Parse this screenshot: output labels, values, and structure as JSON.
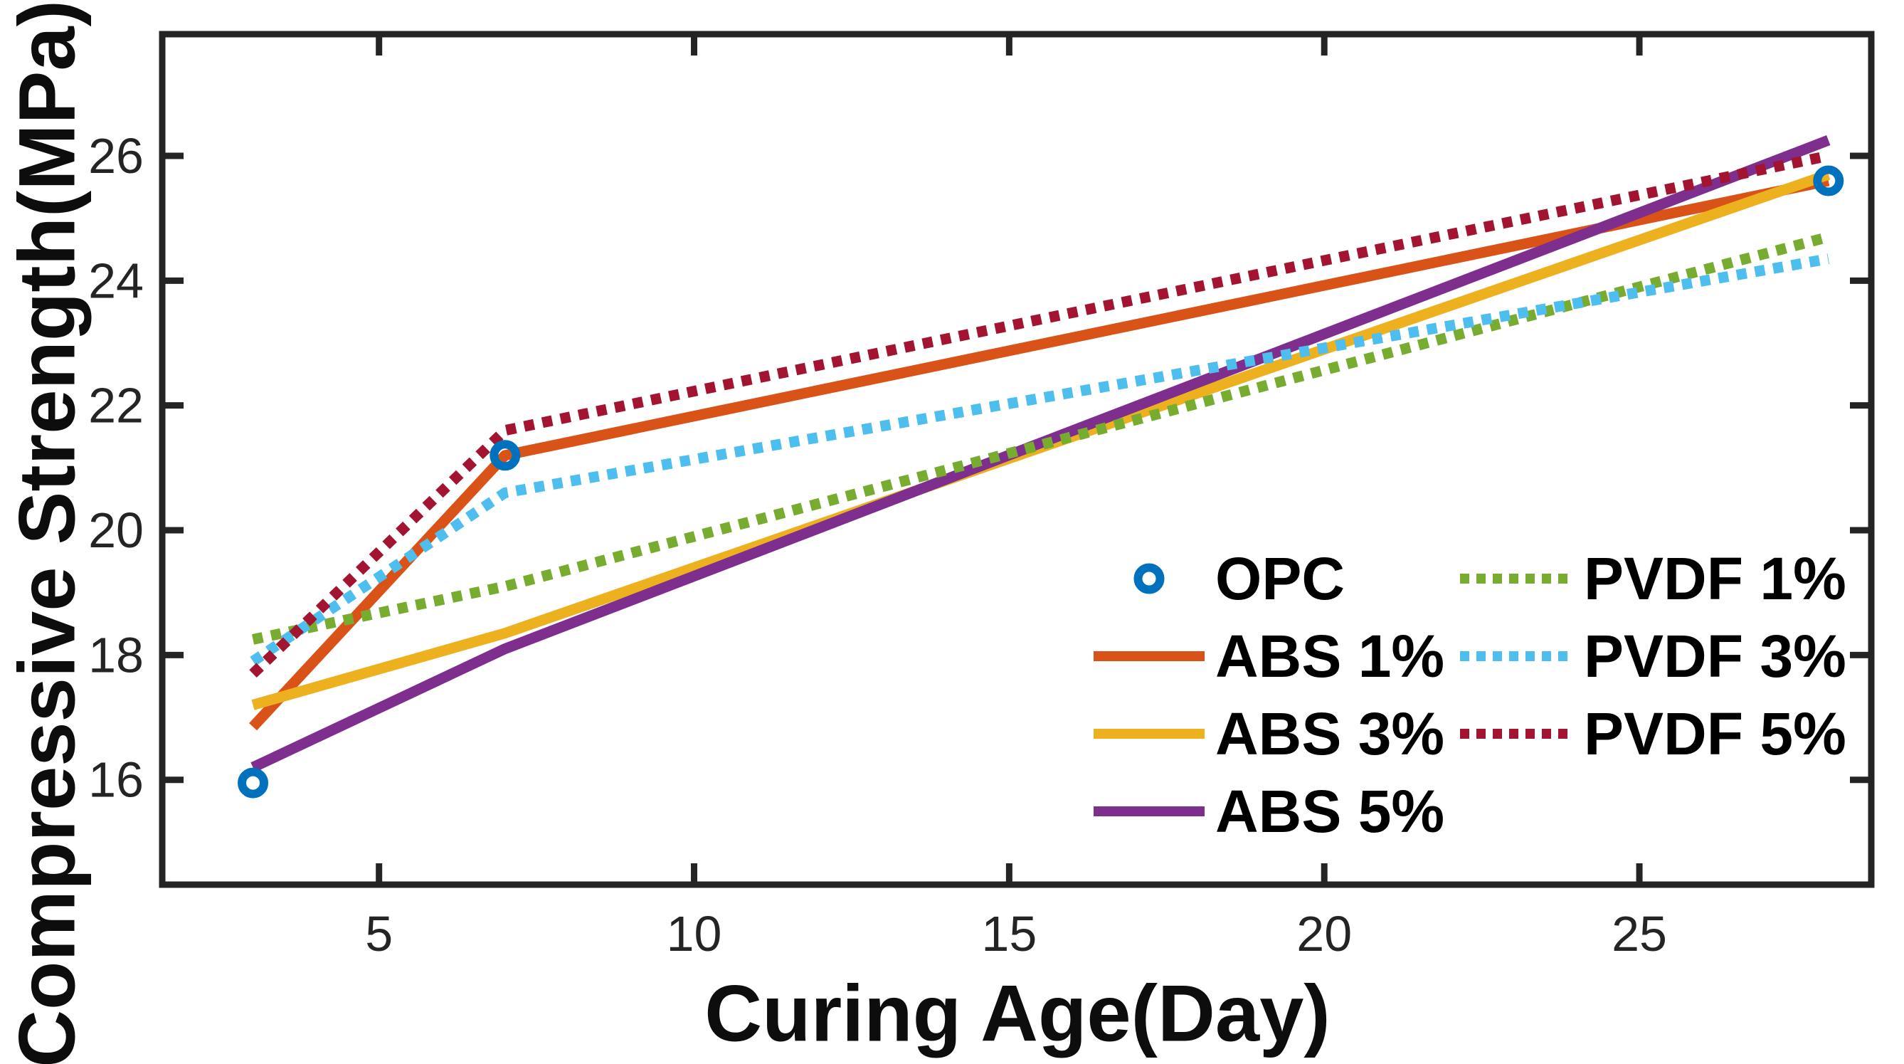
{
  "chart_data": {
    "type": "line",
    "title": "",
    "xlabel": "Curing Age(Day)",
    "ylabel": "Compressive Strength(MPa)",
    "x": [
      3,
      7,
      28
    ],
    "x_ticks": [
      5,
      10,
      15,
      20,
      25
    ],
    "y_ticks": [
      16,
      18,
      20,
      22,
      24,
      26
    ],
    "xlim": [
      1.56,
      28.68
    ],
    "ylim": [
      14.32,
      27.95
    ],
    "grid": false,
    "legend_position": "inside lower-right, two columns, no box",
    "axis_color": "#242424",
    "label_color": "#0d0d0d",
    "background_color": "#ffffff",
    "series": [
      {
        "name": "OPC",
        "color": "#0072BD",
        "line": "none",
        "marker": "open-circle",
        "values": [
          15.95,
          21.2,
          25.6
        ]
      },
      {
        "name": "ABS 1%",
        "color": "#D95319",
        "line": "solid",
        "marker": "none",
        "values": [
          16.85,
          21.2,
          25.6
        ]
      },
      {
        "name": "ABS 3%",
        "color": "#EDB120",
        "line": "solid",
        "marker": "none",
        "values": [
          17.2,
          18.35,
          25.7
        ]
      },
      {
        "name": "ABS 5%",
        "color": "#7E2F8E",
        "line": "solid",
        "marker": "none",
        "values": [
          16.2,
          18.1,
          26.25
        ]
      },
      {
        "name": "PVDF 1%",
        "color": "#77AC30",
        "line": "dotted",
        "marker": "none",
        "values": [
          18.25,
          19.1,
          24.7
        ]
      },
      {
        "name": "PVDF 3%",
        "color": "#4DBEEE",
        "line": "dotted",
        "marker": "none",
        "values": [
          17.9,
          20.6,
          24.35
        ]
      },
      {
        "name": "PVDF 5%",
        "color": "#A2142F",
        "line": "dotted",
        "marker": "none",
        "values": [
          17.7,
          21.6,
          26.0
        ]
      }
    ],
    "legend_columns": [
      [
        "OPC",
        "ABS 1%",
        "ABS 3%",
        "ABS 5%"
      ],
      [
        "PVDF 1%",
        "PVDF 3%",
        "PVDF 5%"
      ]
    ]
  }
}
